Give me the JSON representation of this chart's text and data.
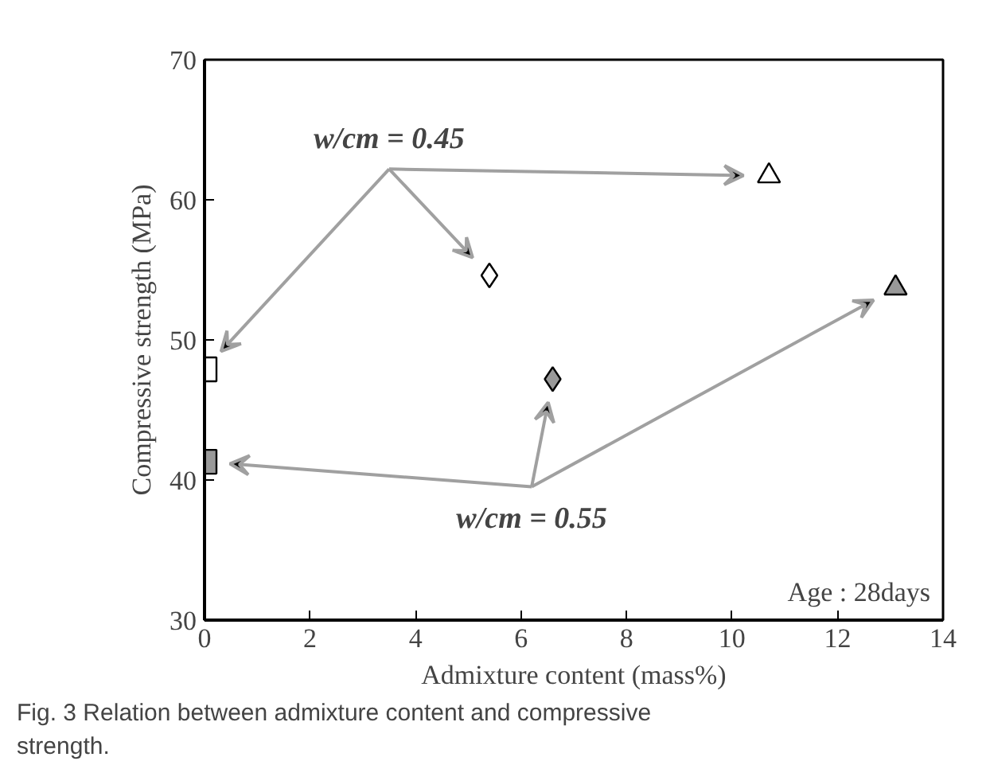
{
  "chart_data": {
    "type": "scatter",
    "xlabel": "Admixture content (mass%)",
    "ylabel": "Compressive strength (MPa)",
    "xlim": [
      0,
      14
    ],
    "xticks": [
      0,
      2,
      4,
      6,
      8,
      10,
      12,
      14
    ],
    "ylim": [
      30,
      70
    ],
    "yticks": [
      30,
      40,
      50,
      60,
      70
    ],
    "grid": false,
    "series": [
      {
        "marker": "square",
        "color": "#ffffff",
        "x": [
          0
        ],
        "values": [
          47.9
        ]
      },
      {
        "marker": "diamond",
        "color": "#ffffff",
        "x": [
          5.4
        ],
        "values": [
          54.6
        ]
      },
      {
        "marker": "triangle",
        "color": "#ffffff",
        "x": [
          10.7
        ],
        "values": [
          61.7
        ]
      },
      {
        "marker": "square",
        "color": "#999999",
        "x": [
          0
        ],
        "values": [
          41.3
        ]
      },
      {
        "marker": "diamond",
        "color": "#999999",
        "x": [
          6.6
        ],
        "values": [
          47.2
        ]
      },
      {
        "marker": "triangle",
        "color": "#999999",
        "x": [
          13.1
        ],
        "values": [
          53.7
        ]
      }
    ],
    "annotations": [
      "w/cm = 0.45",
      "w/cm = 0.55",
      "Age : 28days",
      "Fig. 3  Relation between admixture content and compressive strength."
    ]
  }
}
